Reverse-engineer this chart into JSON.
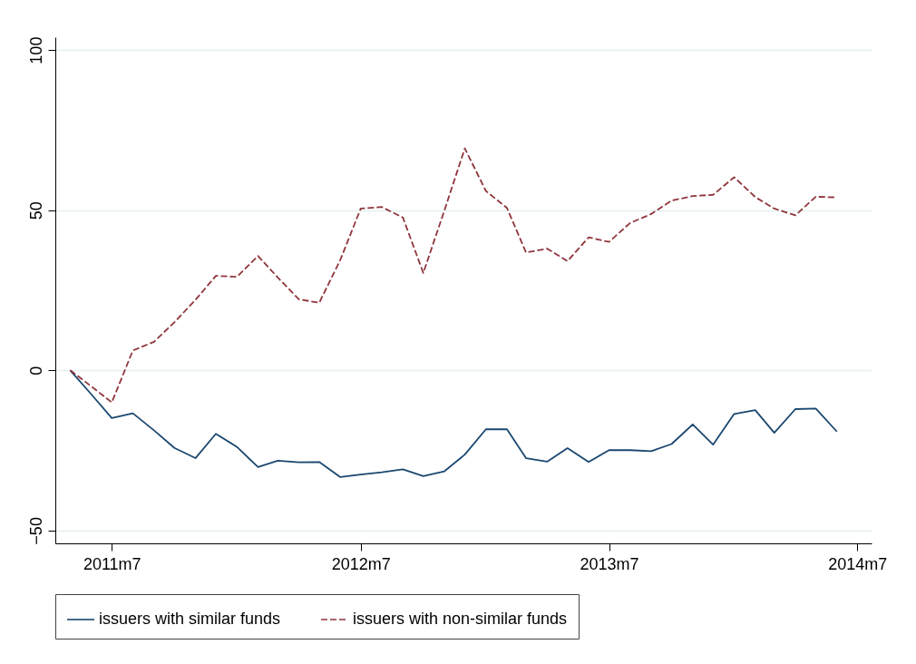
{
  "chart_data": {
    "type": "line",
    "x": [
      "2011-05",
      "2011-06",
      "2011-07",
      "2011-08",
      "2011-09",
      "2011-10",
      "2011-11",
      "2011-12",
      "2012-01",
      "2012-02",
      "2012-03",
      "2012-04",
      "2012-05",
      "2012-06",
      "2012-07",
      "2012-08",
      "2012-09",
      "2012-10",
      "2012-11",
      "2012-12",
      "2013-01",
      "2013-02",
      "2013-03",
      "2013-04",
      "2013-05",
      "2013-06",
      "2013-07",
      "2013-08",
      "2013-09",
      "2013-10",
      "2013-11",
      "2013-12",
      "2014-01",
      "2014-02",
      "2014-03",
      "2014-04",
      "2014-05",
      "2014-06"
    ],
    "series": [
      {
        "name": "issuers with similar funds",
        "color": "#1a476f",
        "line_style": "solid",
        "values": [
          0,
          -7.5,
          -14.9,
          -13.4,
          -18.7,
          -24.2,
          -27.4,
          -19.8,
          -23.9,
          -30.2,
          -28.2,
          -28.7,
          -28.6,
          -33.3,
          -32.5,
          -31.8,
          -30.9,
          -33.0,
          -31.5,
          -26.3,
          -18.4,
          -18.4,
          -27.4,
          -28.5,
          -24.3,
          -28.6,
          -24.9,
          -24.9,
          -25.2,
          -23.0,
          -16.9,
          -23.2,
          -13.6,
          -12.4,
          -19.5,
          -12.1,
          -11.9,
          -19.1
        ]
      },
      {
        "name": "issuers with non-similar funds",
        "color": "#90353b",
        "line_style": "dashed",
        "values": [
          0,
          -5,
          -10.0,
          6.2,
          8.9,
          15,
          22,
          29.5,
          29.2,
          35.7,
          29.0,
          22.2,
          21.1,
          34.5,
          50.5,
          51.0,
          47.7,
          30.4,
          49.9,
          69.3,
          56,
          50.7,
          36.8,
          38.0,
          34.1,
          41.5,
          40.1,
          46.0,
          48.8,
          53.0,
          54.4,
          54.8,
          60.3,
          54.1,
          50.5,
          48.4,
          54.2,
          54.0
        ]
      }
    ],
    "xlim": [
      "2011-04-09",
      "2014-07-22"
    ],
    "xticks": [
      {
        "value": "2011-07",
        "label": "2011m7"
      },
      {
        "value": "2012-07",
        "label": "2012m7"
      },
      {
        "value": "2013-07",
        "label": "2013m7"
      },
      {
        "value": "2014-07",
        "label": "2014m7"
      }
    ],
    "ylim": [
      -54,
      104
    ],
    "yticks": [
      -50,
      0,
      50,
      100
    ],
    "grid": "y",
    "legend": "bottom"
  }
}
